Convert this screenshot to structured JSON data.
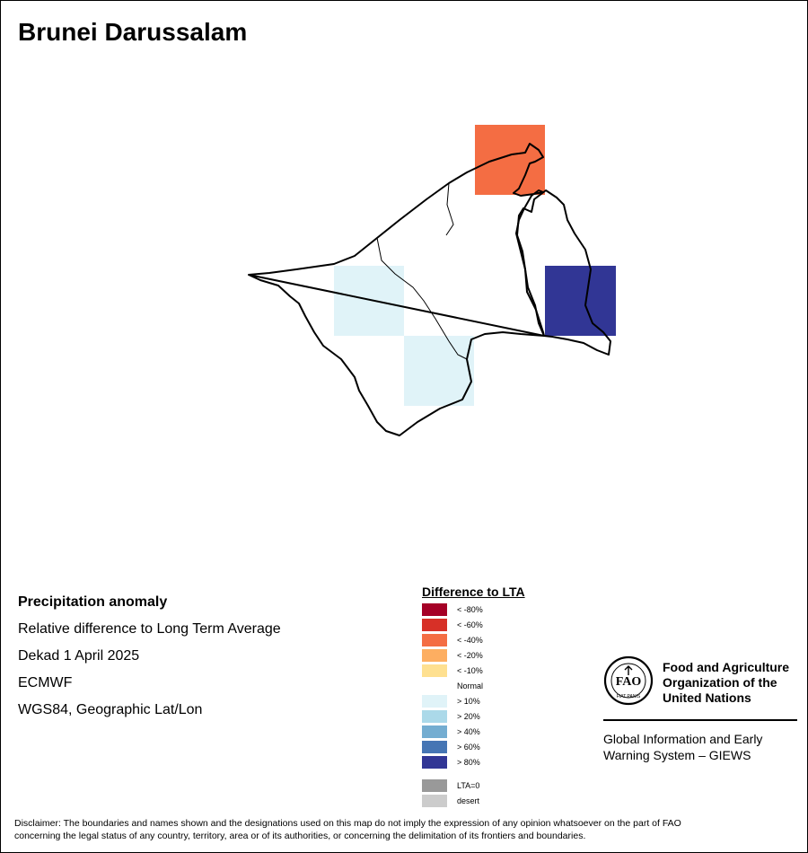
{
  "title": "Brunei Darussalam",
  "info": {
    "heading": "Precipitation anomaly",
    "line1": "Relative difference to Long Term Average",
    "line2": "Dekad 1 April 2025",
    "line3": "ECMWF",
    "line4": "WGS84, Geographic Lat/Lon"
  },
  "legend": {
    "title": "Difference to LTA",
    "items": [
      {
        "label": "< -80%",
        "color": "#a50026"
      },
      {
        "label": "< -60%",
        "color": "#d73027"
      },
      {
        "label": "< -40%",
        "color": "#f46d43"
      },
      {
        "label": "< -20%",
        "color": "#fdae61"
      },
      {
        "label": "< -10%",
        "color": "#fee090"
      },
      {
        "label": "Normal",
        "color": "#ffffff"
      },
      {
        "label": "> 10%",
        "color": "#e0f3f8"
      },
      {
        "label": "> 20%",
        "color": "#abd9e9"
      },
      {
        "label": "> 40%",
        "color": "#74add1"
      },
      {
        "label": "> 60%",
        "color": "#4575b4"
      },
      {
        "label": "> 80%",
        "color": "#313695"
      }
    ],
    "extra": [
      {
        "label": "LTA=0",
        "color": "#999999"
      },
      {
        "label": "desert",
        "color": "#cccccc"
      }
    ]
  },
  "map": {
    "cells": [
      {
        "anomaly": "< -40%",
        "color": "#f46d43"
      },
      {
        "anomaly": "> 10%",
        "color": "#e0f3f8"
      },
      {
        "anomaly": "> 10%",
        "color": "#e0f3f8"
      },
      {
        "anomaly": "> 80%",
        "color": "#313695"
      }
    ]
  },
  "logo": {
    "org_line1": "Food and Agriculture",
    "org_line2": "Organization of the",
    "org_line3": "United Nations",
    "giews_line1": "Global Information and Early",
    "giews_line2": "Warning System – GIEWS",
    "icon": "fao-logo-icon"
  },
  "disclaimer_line1": "Disclaimer: The boundaries and names shown and the designations used on this map do not imply the expression of any opinion whatsoever on the part of FAO",
  "disclaimer_line2": "concerning the legal status of any country, territory, area or of its authorities, or concerning the delimitation of its frontiers and boundaries."
}
